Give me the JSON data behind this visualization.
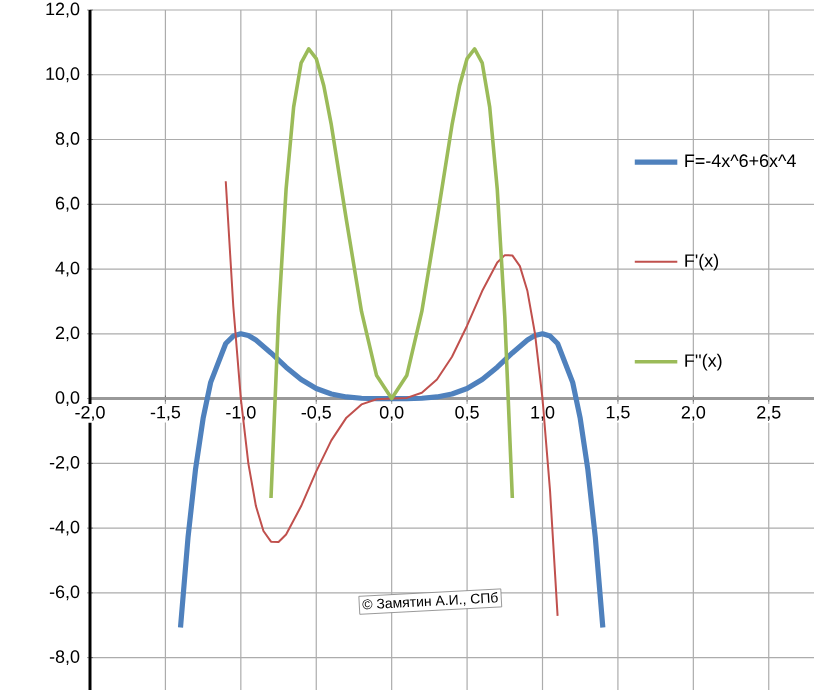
{
  "chart_data": {
    "type": "line",
    "xlim": [
      -2,
      2.8
    ],
    "ylim": [
      -9,
      12
    ],
    "xticks": [
      {
        "value": -2,
        "label": "-2,0"
      },
      {
        "value": -1.5,
        "label": "-1,5"
      },
      {
        "value": -1,
        "label": "-1,0"
      },
      {
        "value": -0.5,
        "label": "-0,5"
      },
      {
        "value": 0,
        "label": "0,0"
      },
      {
        "value": 0.5,
        "label": "0,5"
      },
      {
        "value": 1,
        "label": "1,0"
      },
      {
        "value": 1.5,
        "label": "1,5"
      },
      {
        "value": 2,
        "label": "2,0"
      },
      {
        "value": 2.5,
        "label": "2,5"
      }
    ],
    "yticks": [
      {
        "value": -8,
        "label": "-8,0"
      },
      {
        "value": -6,
        "label": "-6,0"
      },
      {
        "value": -4,
        "label": "-4,0"
      },
      {
        "value": -2,
        "label": "-2,0"
      },
      {
        "value": 0,
        "label": "0,0"
      },
      {
        "value": 2,
        "label": "2,0"
      },
      {
        "value": 4,
        "label": "4,0"
      },
      {
        "value": 6,
        "label": "6,0"
      },
      {
        "value": 8,
        "label": "8,0"
      },
      {
        "value": 10,
        "label": "10,0"
      },
      {
        "value": 12,
        "label": "12,0"
      }
    ],
    "grid": true,
    "legend": "right",
    "marker": "none",
    "line_style": "solid",
    "annotations": [
      "© Замятин А.И., СПб"
    ],
    "series": [
      {
        "name": "F=-4x^6+6x^4",
        "color": "#4f81bd",
        "x": [
          -1.4,
          -1.35,
          -1.3,
          -1.25,
          -1.2,
          -1.1,
          -1.05,
          -1.0,
          -0.95,
          -0.9,
          -0.8,
          -0.7,
          -0.6,
          -0.5,
          -0.4,
          -0.3,
          -0.2,
          -0.1,
          0,
          0.1,
          0.2,
          0.3,
          0.4,
          0.5,
          0.6,
          0.7,
          0.8,
          0.9,
          0.95,
          1.0,
          1.05,
          1.1,
          1.2,
          1.25,
          1.3,
          1.35,
          1.4
        ],
        "values": [
          -7.07,
          -4.28,
          -2.17,
          -0.61,
          0.5,
          1.7,
          1.93,
          2,
          1.95,
          1.81,
          1.41,
          0.97,
          0.59,
          0.31,
          0.14,
          0.05,
          0.01,
          0,
          0,
          0,
          0.01,
          0.05,
          0.14,
          0.31,
          0.59,
          0.97,
          1.41,
          1.81,
          1.95,
          2,
          1.93,
          1.7,
          0.5,
          -0.61,
          -2.17,
          -4.28,
          -7.07
        ]
      },
      {
        "name": "F'(x)",
        "color": "#c0504d",
        "x": [
          -1.1,
          -1.05,
          -1.0,
          -0.95,
          -0.9,
          -0.85,
          -0.8,
          -0.75,
          -0.7,
          -0.6,
          -0.5,
          -0.4,
          -0.3,
          -0.2,
          -0.1,
          0,
          0.1,
          0.2,
          0.3,
          0.4,
          0.5,
          0.6,
          0.7,
          0.75,
          0.8,
          0.85,
          0.9,
          0.95,
          1.0,
          1.05,
          1.1
        ],
        "values": [
          6.71,
          2.85,
          0,
          -2.01,
          -3.32,
          -4.09,
          -4.42,
          -4.43,
          -4.2,
          -3.32,
          -2.25,
          -1.29,
          -0.59,
          -0.18,
          -0.02,
          0,
          0.02,
          0.18,
          0.59,
          1.29,
          2.25,
          3.32,
          4.2,
          4.43,
          4.42,
          4.09,
          3.32,
          2.01,
          0,
          -2.85,
          -6.71
        ]
      },
      {
        "name": "F''(x)",
        "color": "#9bbb59",
        "x": [
          -0.8,
          -0.75,
          -0.7,
          -0.65,
          -0.6,
          -0.55,
          -0.5,
          -0.45,
          -0.4,
          -0.3,
          -0.2,
          -0.1,
          0,
          0.1,
          0.2,
          0.3,
          0.4,
          0.45,
          0.5,
          0.55,
          0.6,
          0.65,
          0.7,
          0.75,
          0.8
        ],
        "values": [
          -3.07,
          2.53,
          6.47,
          9.0,
          10.37,
          10.8,
          10.5,
          9.66,
          8.45,
          5.51,
          2.69,
          0.71,
          0,
          0.71,
          2.69,
          5.51,
          8.45,
          9.66,
          10.5,
          10.8,
          10.37,
          9.0,
          6.47,
          2.53,
          -3.07
        ]
      }
    ]
  }
}
